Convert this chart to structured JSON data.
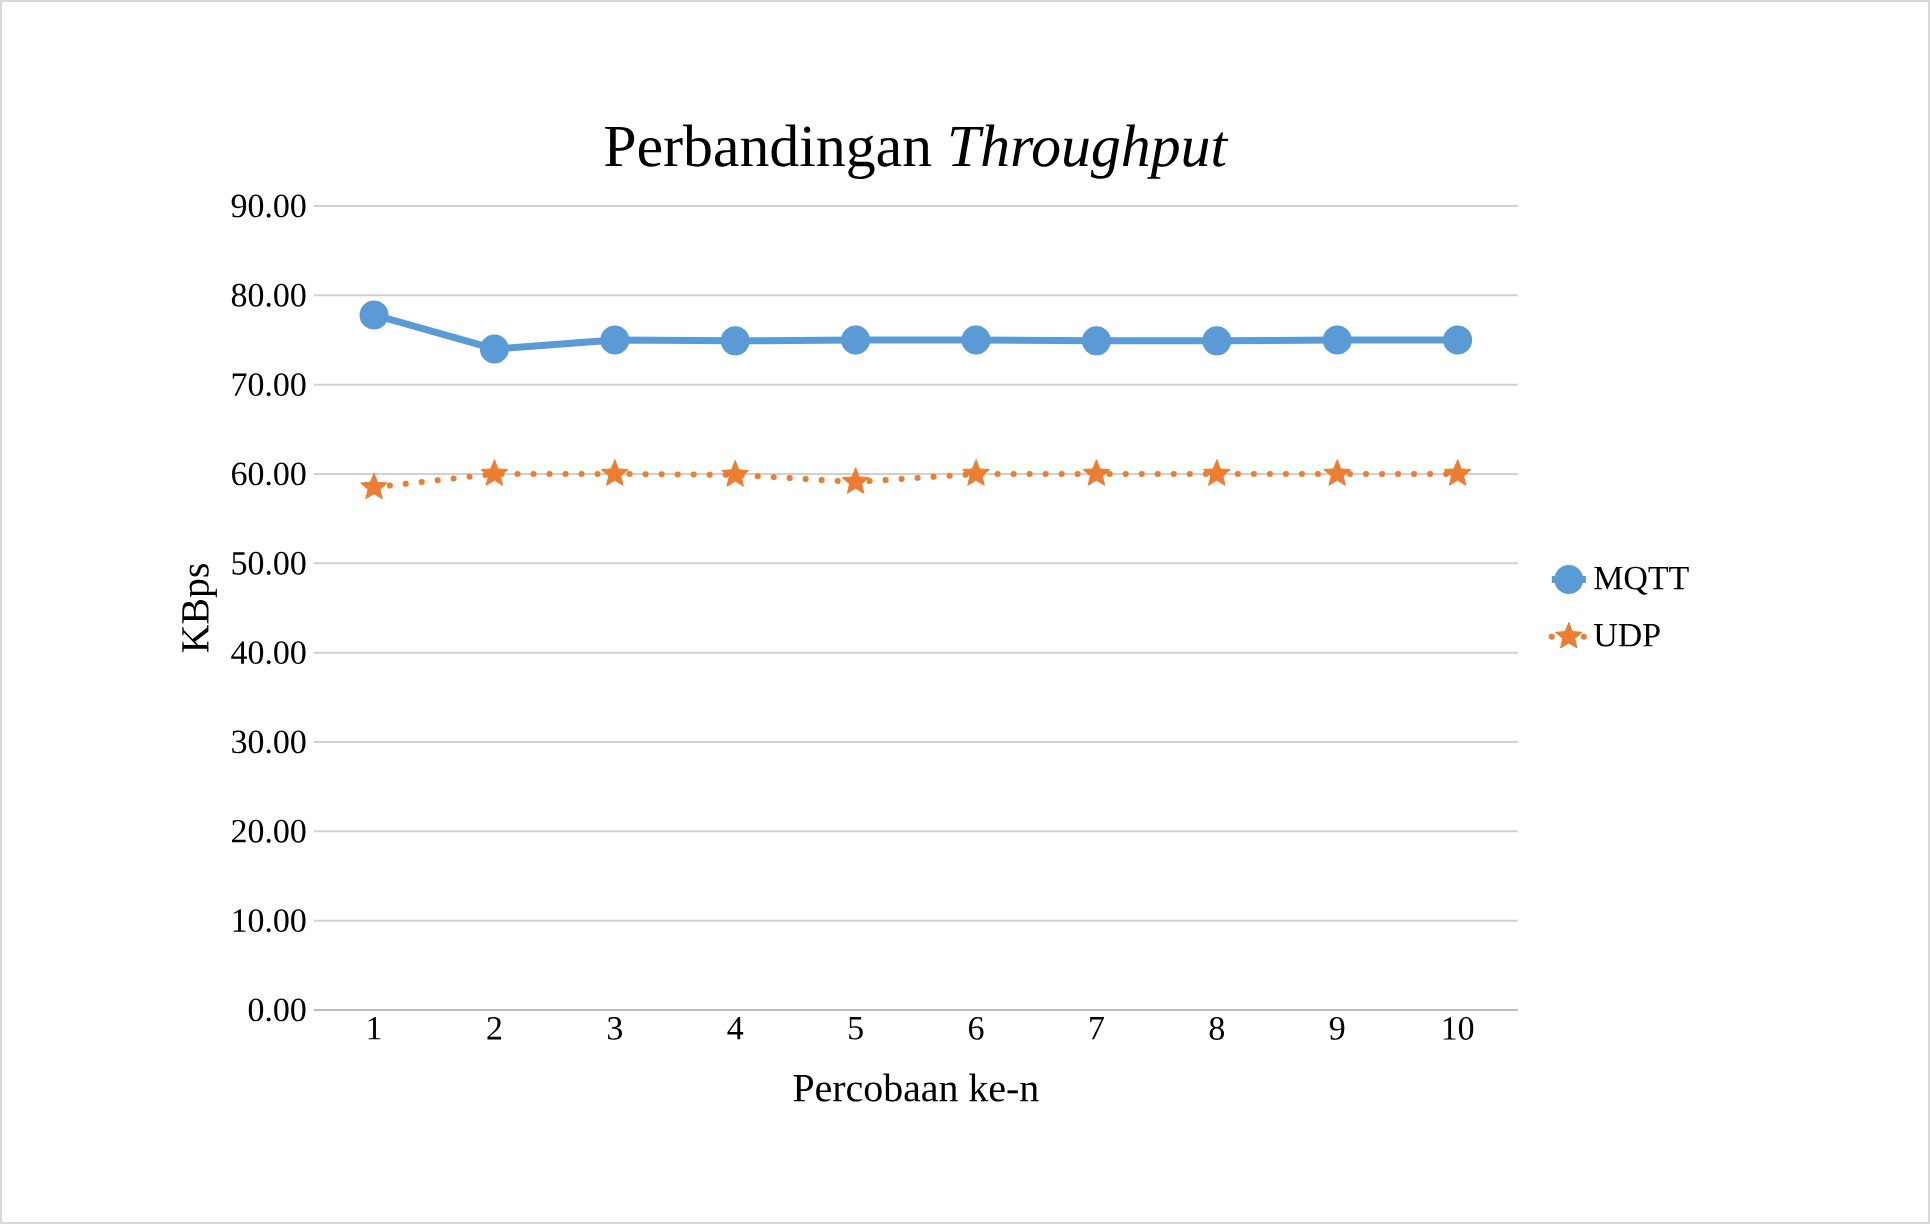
{
  "chart_data": {
    "type": "line",
    "title": "Perbandingan *Throughput*",
    "xlabel": "Percobaan ke-n",
    "ylabel": "KBps",
    "categories": [
      "1",
      "2",
      "3",
      "4",
      "5",
      "6",
      "7",
      "8",
      "9",
      "10"
    ],
    "series": [
      {
        "name": "MQTT",
        "color": "#5b9bd5",
        "marker": "circle",
        "line_style": "solid",
        "values": [
          77.8,
          74.0,
          75.0,
          74.9,
          75.0,
          75.0,
          74.9,
          74.9,
          75.0,
          75.0
        ]
      },
      {
        "name": "UDP",
        "color": "#ed7d31",
        "marker": "star",
        "line_style": "dotted",
        "values": [
          58.5,
          60.0,
          60.0,
          59.9,
          59.1,
          60.0,
          60.0,
          60.0,
          60.0,
          60.0
        ]
      }
    ],
    "ylim": [
      0,
      90
    ],
    "yticks": [
      {
        "value": 0,
        "label": "0.00"
      },
      {
        "value": 10,
        "label": "10.00"
      },
      {
        "value": 20,
        "label": "20.00"
      },
      {
        "value": 30,
        "label": "30.00"
      },
      {
        "value": 40,
        "label": "40.00"
      },
      {
        "value": 50,
        "label": "50.00"
      },
      {
        "value": 60,
        "label": "60.00"
      },
      {
        "value": 70,
        "label": "70.00"
      },
      {
        "value": 80,
        "label": "80.00"
      },
      {
        "value": 90,
        "label": "90.00"
      }
    ],
    "grid": "y",
    "legend": "right"
  }
}
